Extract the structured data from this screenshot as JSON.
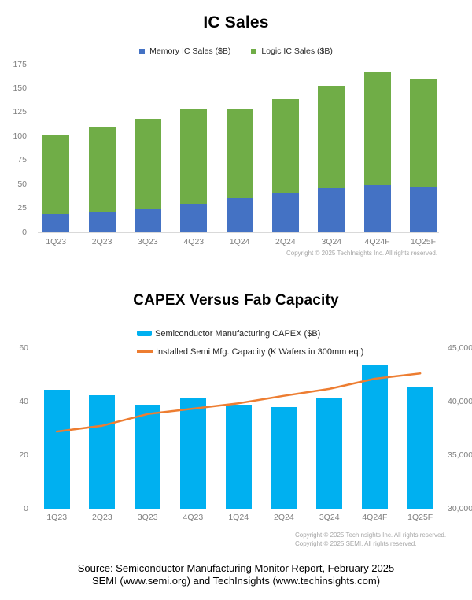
{
  "page": {
    "source_line1": "Source: Semiconductor Manufacturing Monitor Report, February 2025",
    "source_line2": "SEMI (www.semi.org) and TechInsights (www.techinsights.com)"
  },
  "colors": {
    "memory_blue": "#4472C4",
    "logic_green": "#70AD47",
    "capex_cyan": "#00B0F0",
    "capacity_orange": "#ED7D31",
    "axis_text": "#7F7F7F",
    "copyright_text": "#A6A6A6",
    "axis_line": "#D9D9D9"
  },
  "chart_data": [
    {
      "type": "bar",
      "stacked": true,
      "title": "IC Sales",
      "categories": [
        "1Q23",
        "2Q23",
        "3Q23",
        "4Q23",
        "1Q24",
        "2Q24",
        "3Q24",
        "4Q24F",
        "1Q25F"
      ],
      "series": [
        {
          "name": "Memory IC Sales ($B)",
          "color_key": "memory_blue",
          "values": [
            19,
            21,
            24,
            30,
            35,
            41,
            46,
            49,
            48
          ]
        },
        {
          "name": "Logic IC Sales ($B)",
          "color_key": "logic_green",
          "values": [
            83,
            89,
            94,
            99,
            94,
            98,
            107,
            119,
            112
          ]
        }
      ],
      "ylim": [
        0,
        175
      ],
      "ytick_labels": [
        "0",
        "25",
        "50",
        "75",
        "100",
        "125",
        "150",
        "175"
      ],
      "gridlines": false,
      "legend_position": "top-center",
      "copyright": "Copyright © 2025 TechInsights Inc.  All rights reserved."
    },
    {
      "type": "bar+line",
      "title": "CAPEX Versus Fab Capacity",
      "categories": [
        "1Q23",
        "2Q23",
        "3Q23",
        "4Q23",
        "1Q24",
        "2Q24",
        "3Q24",
        "4Q24F",
        "1Q25F"
      ],
      "series": [
        {
          "name": "Semiconductor Manufacturing CAPEX ($B)",
          "type": "bar",
          "axis": "left",
          "color_key": "capex_cyan",
          "values": [
            44.5,
            42.5,
            39,
            41.5,
            39,
            38,
            41.5,
            54,
            45.5
          ]
        },
        {
          "name": "Installed Semi Mfg. Capacity (K Wafers in 300mm eq.)",
          "type": "line",
          "axis": "right",
          "color_key": "capacity_orange",
          "values": [
            37250,
            37800,
            38900,
            39400,
            39900,
            40600,
            41250,
            42200,
            42700
          ]
        }
      ],
      "left_ylim": [
        0,
        60
      ],
      "left_ytick_labels": [
        "0",
        "20",
        "40",
        "60"
      ],
      "right_ylim": [
        30000,
        45000
      ],
      "right_ytick_labels": [
        "30,000",
        "35,000",
        "40,000",
        "45,000"
      ],
      "gridlines": false,
      "legend_position": "top-left",
      "copyright_lines": [
        "Copyright © 2025 TechInsights Inc.  All rights reserved.",
        "Copyright © 2025 SEMI.  All rights reserved."
      ]
    }
  ]
}
